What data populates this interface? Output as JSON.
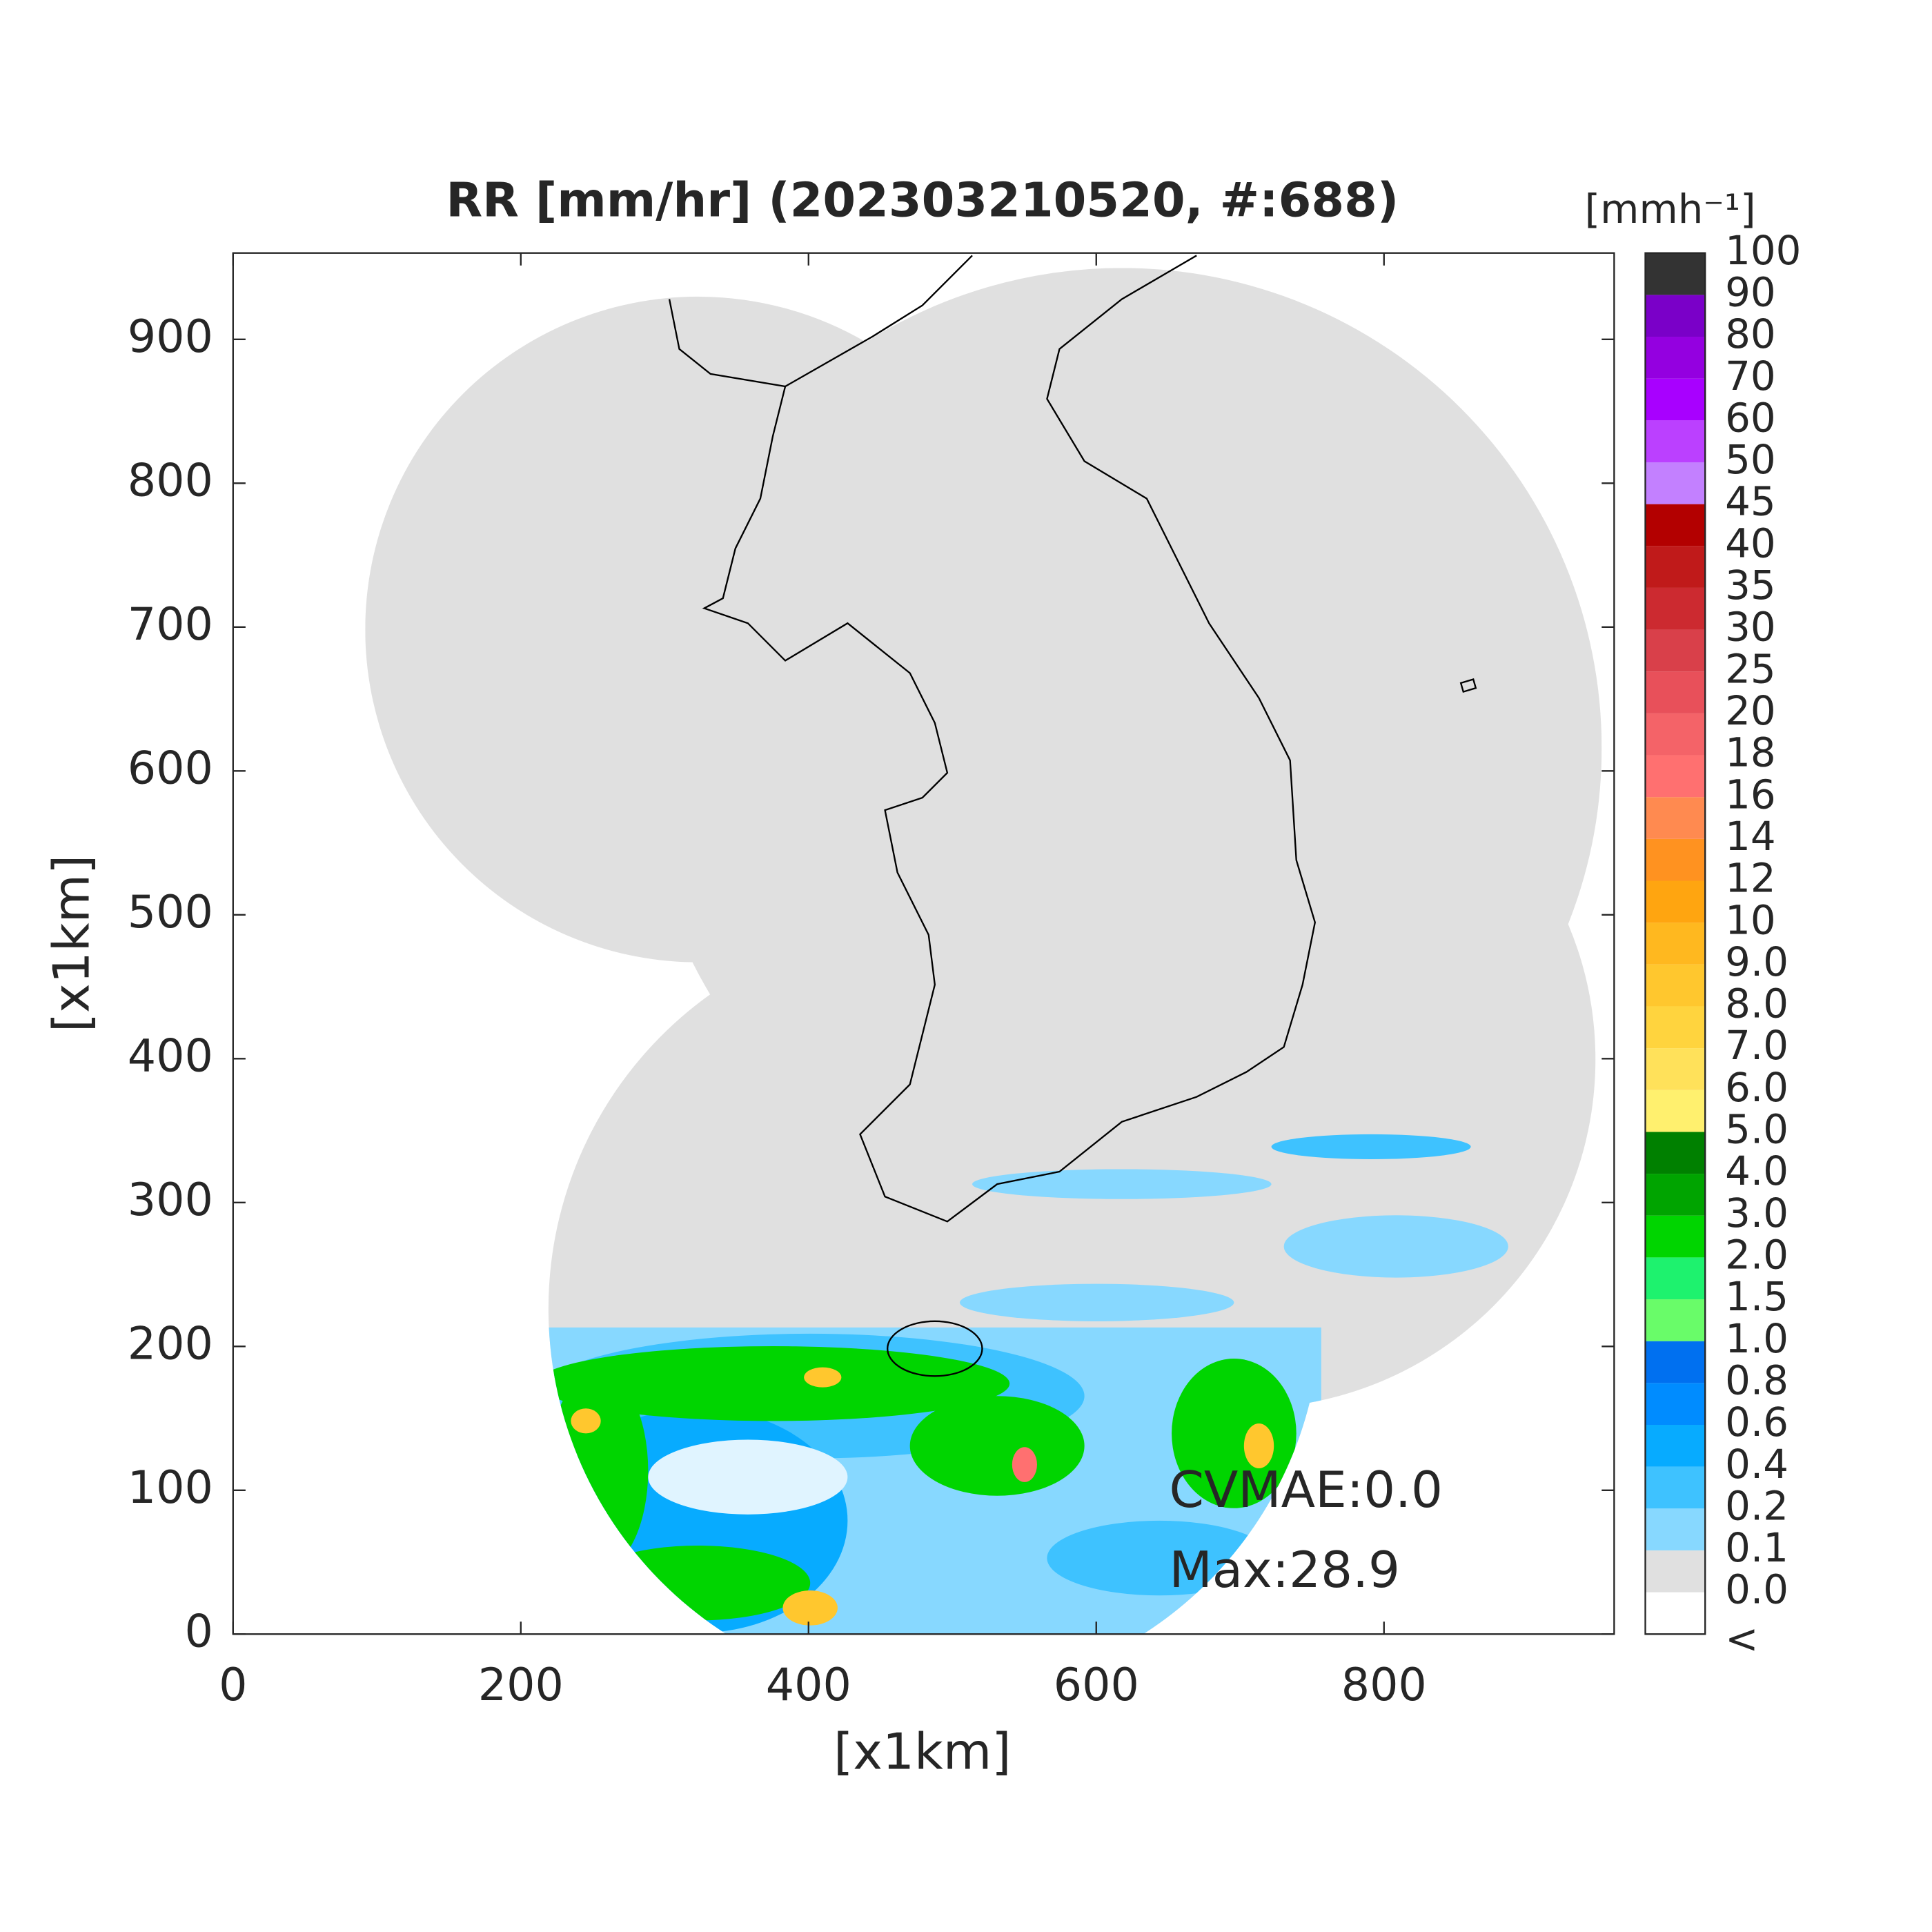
{
  "chart_data": {
    "type": "map",
    "title": "RR [mm/hr] (202303210520, #:688)",
    "x_label": "[x1km]",
    "y_label": "[x1km]",
    "xlim": [
      0,
      960
    ],
    "ylim": [
      0,
      960
    ],
    "xticks": [
      0,
      200,
      400,
      600,
      800
    ],
    "yticks": [
      0,
      100,
      200,
      300,
      400,
      500,
      600,
      700,
      800,
      900
    ],
    "annotations": [
      "CVMAE:0.0",
      "Max:28.9"
    ],
    "colorbar": {
      "units": "[mmh⁻¹]",
      "under_label": "<",
      "under_color": "#ffffff",
      "levels": [
        {
          "value": 0,
          "label": "0.0"
        },
        0.1,
        0.2,
        0.4,
        0.6,
        0.8,
        {
          "value": 1,
          "label": "1.0"
        },
        1.5,
        {
          "value": 2,
          "label": "2.0"
        },
        {
          "value": 3,
          "label": "3.0"
        },
        {
          "value": 4,
          "label": "4.0"
        },
        {
          "value": 5,
          "label": "5.0"
        },
        {
          "value": 6,
          "label": "6.0"
        },
        {
          "value": 7,
          "label": "7.0"
        },
        {
          "value": 8,
          "label": "8.0"
        },
        {
          "value": 9,
          "label": "9.0"
        },
        10,
        12,
        14,
        16,
        18,
        20,
        25,
        30,
        35,
        40,
        45,
        50,
        60,
        70,
        80,
        90,
        100
      ],
      "colors": [
        "#e0e0e0",
        "#87d8ff",
        "#3ec2ff",
        "#07abff",
        "#008cff",
        "#0070f0",
        "#69fc69",
        "#1ef26e",
        "#00d500",
        "#00a400",
        "#008000",
        "#fff06e",
        "#ffe15a",
        "#ffd43e",
        "#ffc72e",
        "#ffb81f",
        "#ffa510",
        "#ff9220",
        "#ff8a50",
        "#ff7070",
        "#f46368",
        "#e8505a",
        "#d9404a",
        "#cc2a30",
        "#c01a1a",
        "#b30000",
        "#c380ff",
        "#bb40ff",
        "#a800ff",
        "#9400e0",
        "#7a00c8",
        "#333333"
      ]
    }
  }
}
